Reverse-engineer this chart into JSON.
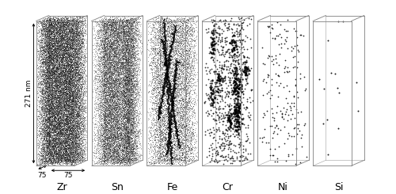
{
  "elements": [
    "Zr",
    "Sn",
    "Fe",
    "Cr",
    "Ni",
    "Si"
  ],
  "n_dots": [
    25000,
    18000,
    8000,
    1200,
    200,
    15
  ],
  "dot_sizes": [
    0.15,
    0.15,
    0.2,
    2.0,
    1.5,
    2.0
  ],
  "dot_alphas": [
    0.85,
    0.75,
    0.65,
    0.85,
    0.9,
    0.95
  ],
  "label_271nm": "271 nm",
  "label_75_side": "75",
  "label_75_bottom": "75",
  "background_color": "#ffffff",
  "box_edge_color": "#888888",
  "dot_color": "#111111",
  "label_fontsize": 6.5,
  "element_fontsize": 9
}
